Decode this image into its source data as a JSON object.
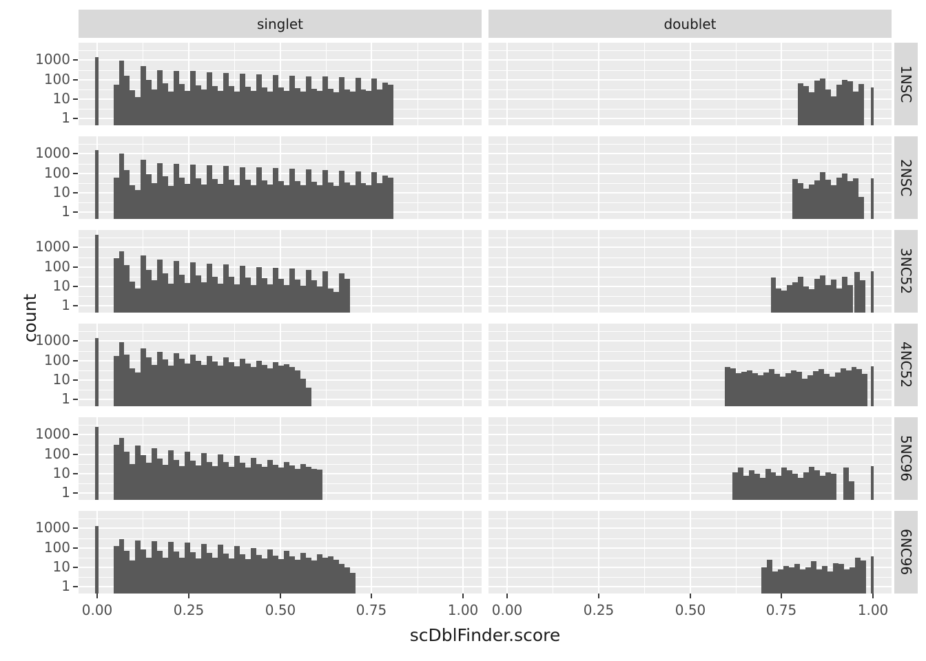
{
  "chart_data": {
    "type": "bar",
    "subtype": "faceted-log-histogram",
    "title": "",
    "x_label": "scDblFinder.score",
    "y_label": "count",
    "col_facets": [
      "singlet",
      "doublet"
    ],
    "row_facets": [
      "1NSC",
      "2NSC",
      "3NC52",
      "4NC52",
      "5NC96",
      "6NC96"
    ],
    "x_tick_labels": [
      "0.00",
      "0.25",
      "0.50",
      "0.75",
      "1.00"
    ],
    "x_tick_values": [
      0,
      0.25,
      0.5,
      0.75,
      1.0
    ],
    "x_minor_values": [
      0.125,
      0.375,
      0.625,
      0.875
    ],
    "x_range": [
      -0.05,
      1.05
    ],
    "y_tick_labels": [
      "1",
      "10",
      "100",
      "1000"
    ],
    "y_tick_values": [
      1,
      10,
      100,
      1000
    ],
    "y_scale": "log10",
    "grid": true,
    "legend": "none",
    "binwidth": 0.015,
    "colors": {
      "bar": "#595959",
      "panel_bg": "#EBEBEB",
      "strip_bg": "#D9D9D9",
      "grid": "#FFFFFF",
      "tick_text": "#4D4D4D",
      "title_text": "#1A1A1A",
      "tick_mark": "#333333"
    },
    "panels": [
      {
        "row": "1NSC",
        "col": "singlet",
        "runs": [
          {
            "start": -0.005,
            "w": 0.01,
            "counts": [
              1400
            ]
          },
          {
            "start": 0.045,
            "counts": [
              55,
              950,
              160,
              28,
              13,
              480,
              95,
              32,
              300,
              65,
              24,
              290,
              58,
              26,
              270,
              52,
              30,
              240,
              48,
              27,
              220,
              46,
              24,
              205,
              44,
              26,
              190,
              40,
              24,
              175,
              38,
              26,
              160,
              36,
              24,
              150,
              34,
              26,
              140,
              33,
              22,
              130,
              32,
              24,
              120,
              30,
              26,
              110,
              30,
              70,
              55
            ]
          }
        ]
      },
      {
        "row": "1NSC",
        "col": "doublet",
        "runs": [
          {
            "start": 0.795,
            "counts": [
              65,
              45,
              22,
              90,
              115,
              30,
              14,
              55,
              100,
              80,
              25,
              60
            ]
          },
          {
            "start": 0.993,
            "w": 0.009,
            "counts": [
              40
            ]
          }
        ]
      },
      {
        "row": "2NSC",
        "col": "singlet",
        "runs": [
          {
            "start": -0.005,
            "w": 0.01,
            "counts": [
              1500
            ]
          },
          {
            "start": 0.045,
            "counts": [
              60,
              1000,
              150,
              25,
              14,
              500,
              90,
              30,
              320,
              70,
              22,
              300,
              60,
              28,
              280,
              55,
              26,
              250,
              50,
              28,
              230,
              48,
              25,
              210,
              46,
              24,
              195,
              42,
              26,
              180,
              40,
              24,
              165,
              38,
              25,
              155,
              36,
              24,
              145,
              34,
              23,
              135,
              33,
              25,
              125,
              32,
              24,
              115,
              32,
              75,
              60
            ]
          }
        ]
      },
      {
        "row": "2NSC",
        "col": "doublet",
        "runs": [
          {
            "start": 0.78,
            "counts": [
              50,
              30,
              16,
              26,
              42,
              115,
              48,
              25,
              60,
              95,
              38,
              55,
              6
            ]
          },
          {
            "start": 0.993,
            "w": 0.009,
            "counts": [
              55
            ]
          }
        ]
      },
      {
        "row": "3NC52",
        "col": "singlet",
        "runs": [
          {
            "start": -0.005,
            "w": 0.01,
            "counts": [
              4500
            ]
          },
          {
            "start": 0.045,
            "counts": [
              280,
              620,
              120,
              18,
              8,
              380,
              70,
              20,
              230,
              45,
              14,
              200,
              40,
              15,
              170,
              35,
              16,
              150,
              32,
              14,
              130,
              30,
              13,
              115,
              28,
              12,
              100,
              26,
              13,
              90,
              24,
              12,
              80,
              22,
              11,
              70,
              20,
              10,
              60,
              8,
              5,
              45,
              25
            ]
          }
        ]
      },
      {
        "row": "3NC52",
        "col": "doublet",
        "runs": [
          {
            "start": 0.72,
            "counts": [
              28,
              8,
              6,
              12,
              16,
              30,
              10,
              7,
              25,
              35,
              12,
              22,
              8,
              30,
              12
            ]
          },
          {
            "start": 0.948,
            "counts": [
              55,
              20
            ]
          },
          {
            "start": 0.993,
            "w": 0.009,
            "counts": [
              60
            ]
          }
        ]
      },
      {
        "row": "4NC52",
        "col": "singlet",
        "runs": [
          {
            "start": -0.005,
            "w": 0.01,
            "counts": [
              1400
            ]
          },
          {
            "start": 0.045,
            "counts": [
              170,
              900,
              200,
              40,
              25,
              420,
              150,
              60,
              280,
              110,
              55,
              240,
              120,
              70,
              200,
              100,
              60,
              170,
              90,
              55,
              150,
              80,
              50,
              120,
              70,
              45,
              100,
              60,
              40,
              80,
              55,
              65,
              45,
              30,
              12,
              4
            ]
          }
        ]
      },
      {
        "row": "4NC52",
        "col": "doublet",
        "runs": [
          {
            "start": 0.595,
            "counts": [
              45,
              38,
              22,
              26,
              32,
              22,
              18,
              25,
              35,
              20,
              15,
              22,
              30,
              26,
              12,
              18,
              28,
              35,
              20,
              15,
              25,
              40,
              30,
              45,
              35,
              20
            ]
          },
          {
            "start": 0.993,
            "w": 0.009,
            "counts": [
              50
            ]
          }
        ]
      },
      {
        "row": "5NC96",
        "col": "singlet",
        "runs": [
          {
            "start": -0.005,
            "w": 0.01,
            "counts": [
              2600
            ]
          },
          {
            "start": 0.045,
            "counts": [
              300,
              700,
              130,
              30,
              280,
              90,
              35,
              200,
              60,
              28,
              160,
              50,
              25,
              130,
              45,
              26,
              110,
              40,
              24,
              95,
              38,
              22,
              80,
              35,
              20,
              65,
              30,
              22,
              50,
              28,
              20,
              40,
              26,
              18,
              30,
              22,
              18,
              16
            ]
          }
        ]
      },
      {
        "row": "5NC96",
        "col": "doublet",
        "runs": [
          {
            "start": 0.615,
            "counts": [
              12,
              20,
              8,
              15,
              10,
              6,
              18,
              12,
              8,
              20,
              15,
              10,
              6,
              12,
              22,
              15,
              8,
              12,
              10
            ]
          },
          {
            "start": 0.918,
            "counts": [
              20,
              4
            ]
          },
          {
            "start": 0.993,
            "w": 0.009,
            "counts": [
              25
            ]
          }
        ]
      },
      {
        "row": "6NC96",
        "col": "singlet",
        "runs": [
          {
            "start": -0.005,
            "w": 0.01,
            "counts": [
              1300
            ]
          },
          {
            "start": 0.045,
            "counts": [
              120,
              290,
              70,
              22,
              240,
              80,
              30,
              220,
              70,
              32,
              200,
              65,
              30,
              180,
              60,
              28,
              160,
              55,
              30,
              140,
              50,
              28,
              120,
              48,
              26,
              100,
              44,
              28,
              85,
              40,
              26,
              70,
              36,
              24,
              55,
              32,
              22,
              45,
              30,
              35,
              24,
              15,
              10,
              5
            ]
          }
        ]
      },
      {
        "row": "6NC96",
        "col": "doublet",
        "runs": [
          {
            "start": 0.695,
            "counts": [
              10,
              25,
              6,
              8,
              12,
              10,
              15,
              8,
              10,
              20,
              8,
              12,
              6,
              16,
              15,
              8,
              10,
              30,
              22
            ]
          },
          {
            "start": 0.993,
            "w": 0.009,
            "counts": [
              35
            ]
          }
        ]
      }
    ]
  }
}
